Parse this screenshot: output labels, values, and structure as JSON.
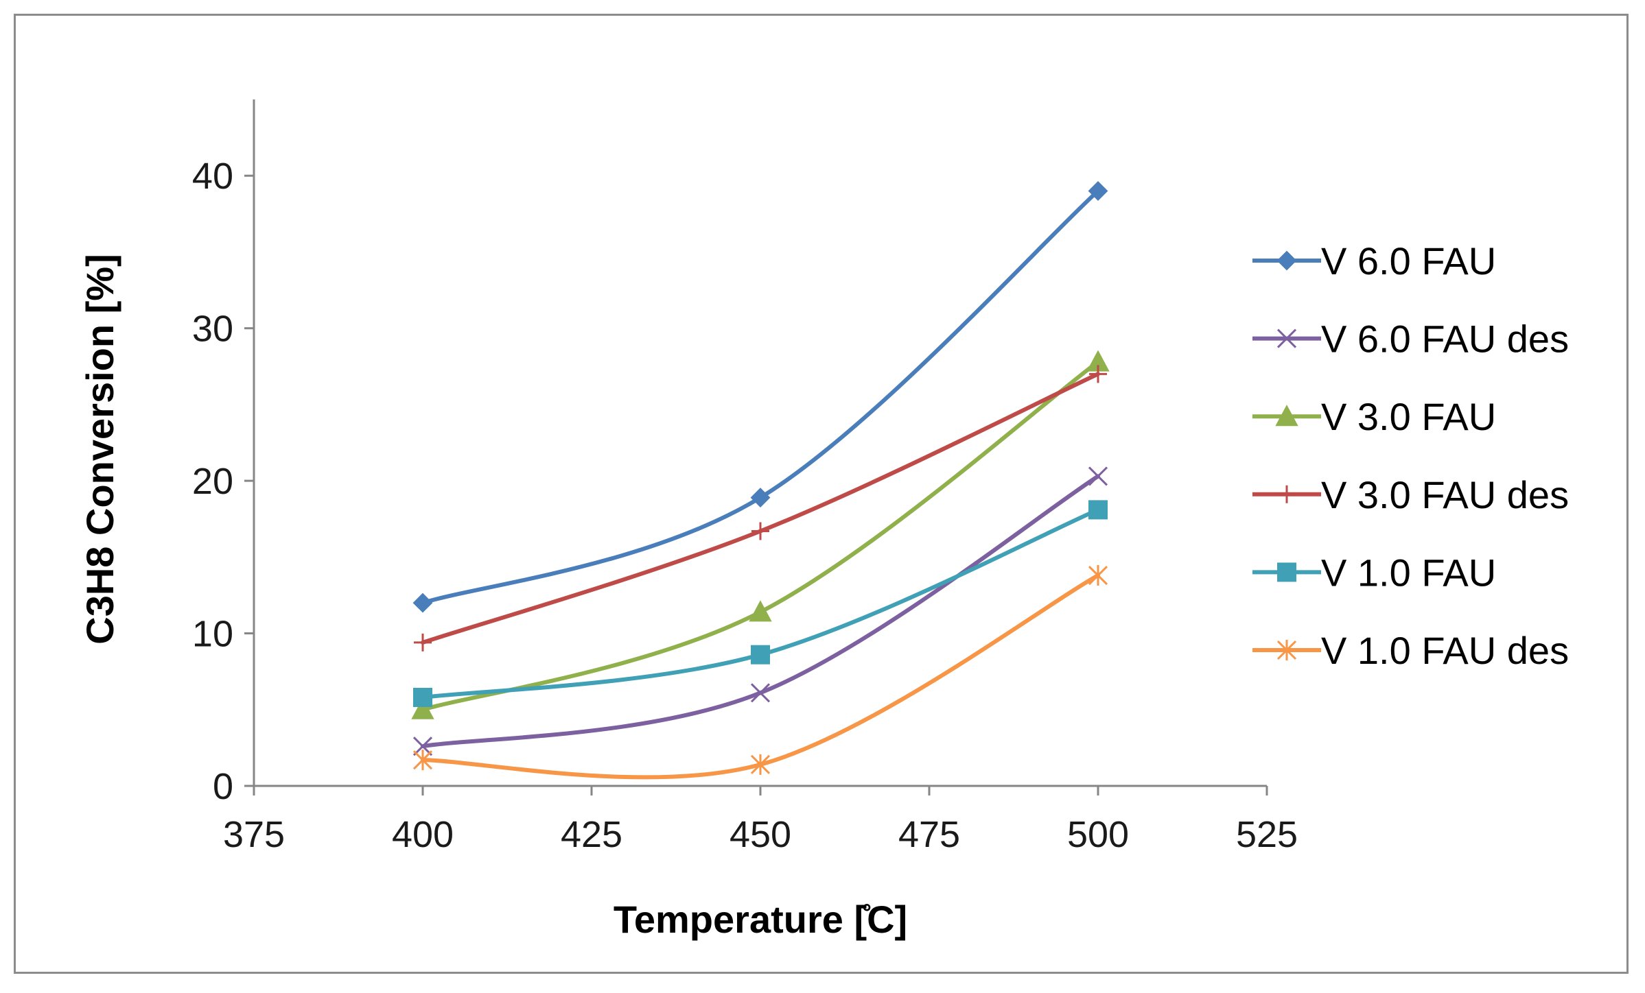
{
  "chart_data": {
    "type": "line",
    "title": "",
    "xlabel": "Temperature [̊C]",
    "ylabel": "C3H8 Conversion [%]",
    "xlim": [
      375,
      525
    ],
    "ylim": [
      0,
      45
    ],
    "xticks": [
      375,
      400,
      425,
      450,
      475,
      500,
      525
    ],
    "yticks": [
      0,
      10,
      20,
      30,
      40
    ],
    "grid": false,
    "legend_position": "right",
    "x": [
      400,
      450,
      500
    ],
    "series": [
      {
        "name": "V 6.0 FAU",
        "values": [
          12.0,
          18.9,
          39.0
        ],
        "color": "#4a7ebb",
        "marker": "diamond"
      },
      {
        "name": "V 6.0 FAU des",
        "values": [
          2.6,
          6.1,
          20.3
        ],
        "color": "#7d60a0",
        "marker": "x"
      },
      {
        "name": "V 3.0 FAU",
        "values": [
          5.0,
          11.4,
          27.8
        ],
        "color": "#8fb04a",
        "marker": "triangle"
      },
      {
        "name": "V 3.0 FAU des",
        "values": [
          9.4,
          16.7,
          27.0
        ],
        "color": "#be4b48",
        "marker": "plus"
      },
      {
        "name": "V 1.0 FAU",
        "values": [
          5.8,
          8.6,
          18.1
        ],
        "color": "#3fa0b6",
        "marker": "square"
      },
      {
        "name": "V 1.0 FAU des",
        "values": [
          1.7,
          1.4,
          13.8
        ],
        "color": "#f79646",
        "marker": "star"
      }
    ]
  }
}
